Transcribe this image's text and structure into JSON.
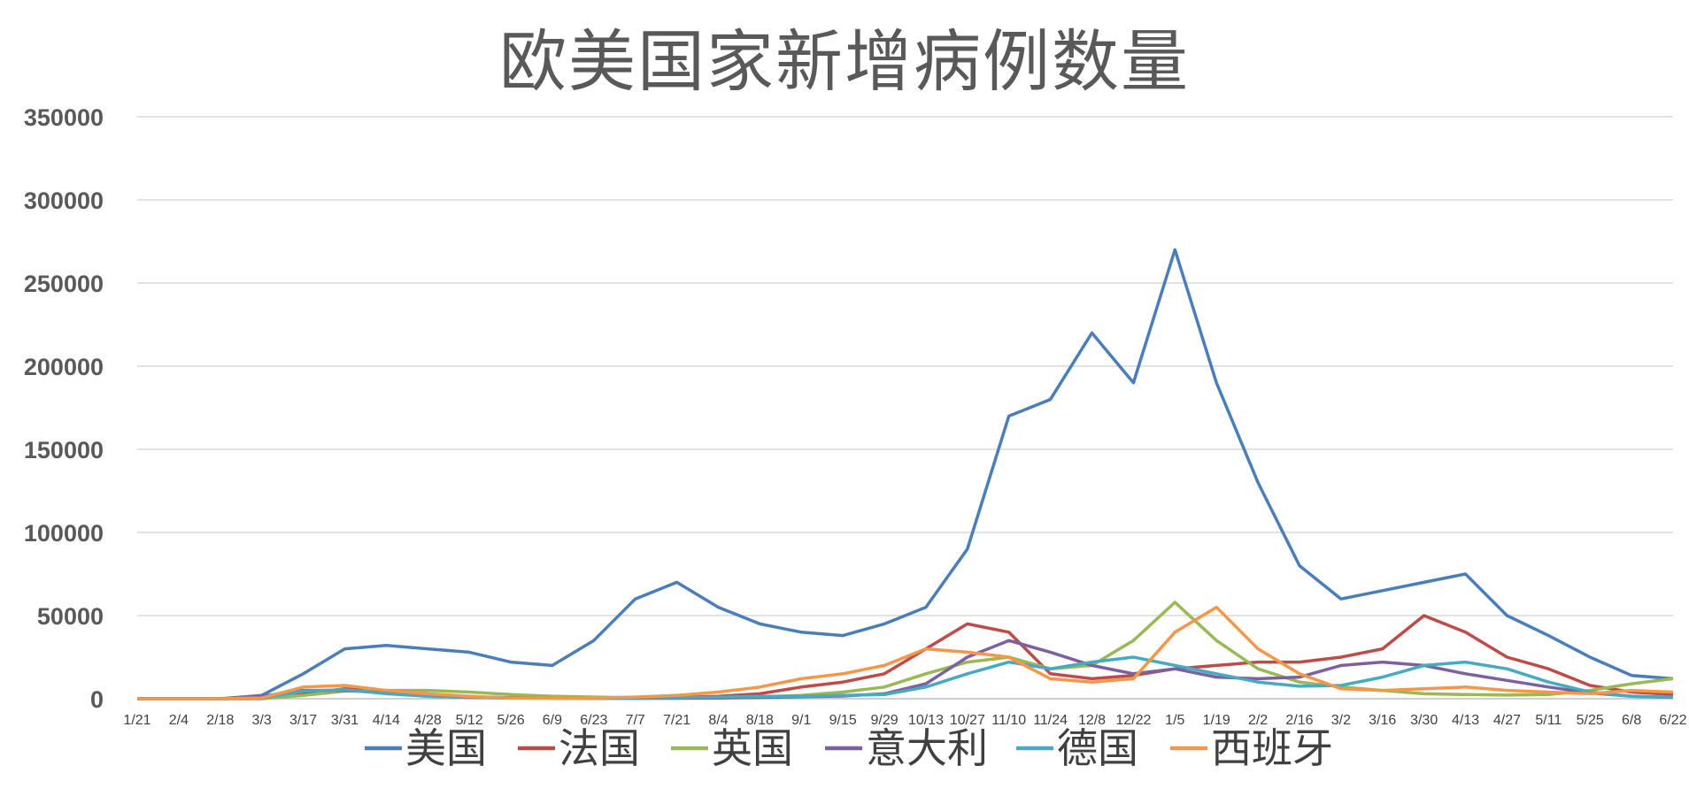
{
  "chart_data": {
    "type": "line",
    "title": "欧美国家新增病例数量",
    "xlabel": "",
    "ylabel": "",
    "ylim": [
      0,
      350000
    ],
    "y_ticks": [
      0,
      50000,
      100000,
      150000,
      200000,
      250000,
      300000,
      350000
    ],
    "y_tick_labels": [
      "0",
      "50000",
      "100000",
      "150000",
      "200000",
      "250000",
      "300000",
      "350000"
    ],
    "categories": [
      "1/21",
      "2/4",
      "2/18",
      "3/3",
      "3/17",
      "3/31",
      "4/14",
      "4/28",
      "5/12",
      "5/26",
      "6/9",
      "6/23",
      "7/7",
      "7/21",
      "8/4",
      "8/18",
      "9/1",
      "9/15",
      "9/29",
      "10/13",
      "10/27",
      "11/10",
      "11/24",
      "12/8",
      "12/22",
      "1/5",
      "1/19",
      "2/2",
      "2/16",
      "3/2",
      "3/16",
      "3/30",
      "4/13",
      "4/27",
      "5/11",
      "5/25",
      "6/8",
      "6/22"
    ],
    "grid": true,
    "legend_position": "bottom",
    "series": [
      {
        "name": "美国",
        "color": "#4a7ebb",
        "values": [
          0,
          0,
          0,
          2000,
          15000,
          30000,
          32000,
          30000,
          28000,
          22000,
          20000,
          35000,
          60000,
          70000,
          55000,
          45000,
          40000,
          38000,
          45000,
          55000,
          90000,
          170000,
          180000,
          220000,
          190000,
          270000,
          190000,
          130000,
          80000,
          60000,
          65000,
          70000,
          75000,
          50000,
          38000,
          25000,
          14000,
          12000
        ]
      },
      {
        "name": "法国",
        "color": "#be4b48",
        "values": [
          0,
          0,
          0,
          0,
          3000,
          6000,
          4000,
          1500,
          800,
          500,
          500,
          500,
          600,
          800,
          1500,
          3000,
          7000,
          10000,
          15000,
          30000,
          45000,
          40000,
          15000,
          12000,
          14000,
          18000,
          20000,
          22000,
          22000,
          25000,
          30000,
          50000,
          40000,
          25000,
          18000,
          8000,
          4000,
          2500
        ]
      },
      {
        "name": "英国",
        "color": "#98b954",
        "values": [
          0,
          0,
          0,
          0,
          2000,
          4500,
          5000,
          5000,
          4000,
          2500,
          1500,
          1000,
          600,
          700,
          800,
          1200,
          2000,
          4000,
          7000,
          15000,
          22000,
          25000,
          18000,
          20000,
          35000,
          58000,
          35000,
          18000,
          10000,
          7000,
          5000,
          3000,
          2500,
          2200,
          2500,
          5000,
          9000,
          12000
        ]
      },
      {
        "name": "意大利",
        "color": "#7d60a0",
        "values": [
          0,
          0,
          0,
          1500,
          5000,
          5000,
          3500,
          2200,
          1200,
          600,
          300,
          200,
          200,
          250,
          400,
          800,
          1200,
          1600,
          3000,
          9000,
          25000,
          35000,
          28000,
          20000,
          15000,
          18000,
          13000,
          12000,
          13000,
          20000,
          22000,
          20000,
          15000,
          11000,
          7000,
          3500,
          1500,
          800
        ]
      },
      {
        "name": "德国",
        "color": "#46aac5",
        "values": [
          0,
          0,
          0,
          500,
          4500,
          5500,
          3000,
          1500,
          800,
          500,
          400,
          400,
          500,
          700,
          1000,
          1400,
          1500,
          2000,
          2500,
          7000,
          15000,
          22000,
          18000,
          22000,
          25000,
          20000,
          15000,
          10000,
          7500,
          8000,
          13000,
          20000,
          22000,
          18000,
          10000,
          4000,
          1500,
          900
        ]
      },
      {
        "name": "西班牙",
        "color": "#f79646",
        "values": [
          0,
          0,
          0,
          500,
          7000,
          8000,
          5000,
          3000,
          1500,
          400,
          300,
          400,
          1000,
          2000,
          4000,
          7000,
          12000,
          15000,
          20000,
          30000,
          28000,
          25000,
          12000,
          10000,
          12000,
          40000,
          55000,
          30000,
          15000,
          6000,
          5000,
          6000,
          7000,
          5000,
          4000,
          3000,
          5000,
          4000
        ]
      }
    ]
  }
}
